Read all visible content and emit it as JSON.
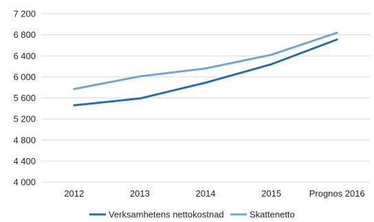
{
  "chart_data": {
    "type": "line",
    "categories": [
      "2012",
      "2013",
      "2014",
      "2015",
      "Prognos 2016"
    ],
    "series": [
      {
        "name": "Verksamhetens nettokostnad",
        "values": [
          5460,
          5590,
          5890,
          6240,
          6710
        ],
        "color": "#1f6db5"
      },
      {
        "name": "Skattenetto",
        "values": [
          5770,
          6010,
          6160,
          6420,
          6840
        ],
        "color": "#6fa6dc"
      }
    ],
    "yticks": [
      "4 000",
      "4 400",
      "4 800",
      "5 200",
      "5 600",
      "6 000",
      "6 400",
      "6 800",
      "7 200"
    ],
    "ylim": [
      4000,
      7200
    ],
    "ystep": 400,
    "grid": true,
    "grid_color": "#d9d9d9",
    "legend_position": "bottom"
  }
}
